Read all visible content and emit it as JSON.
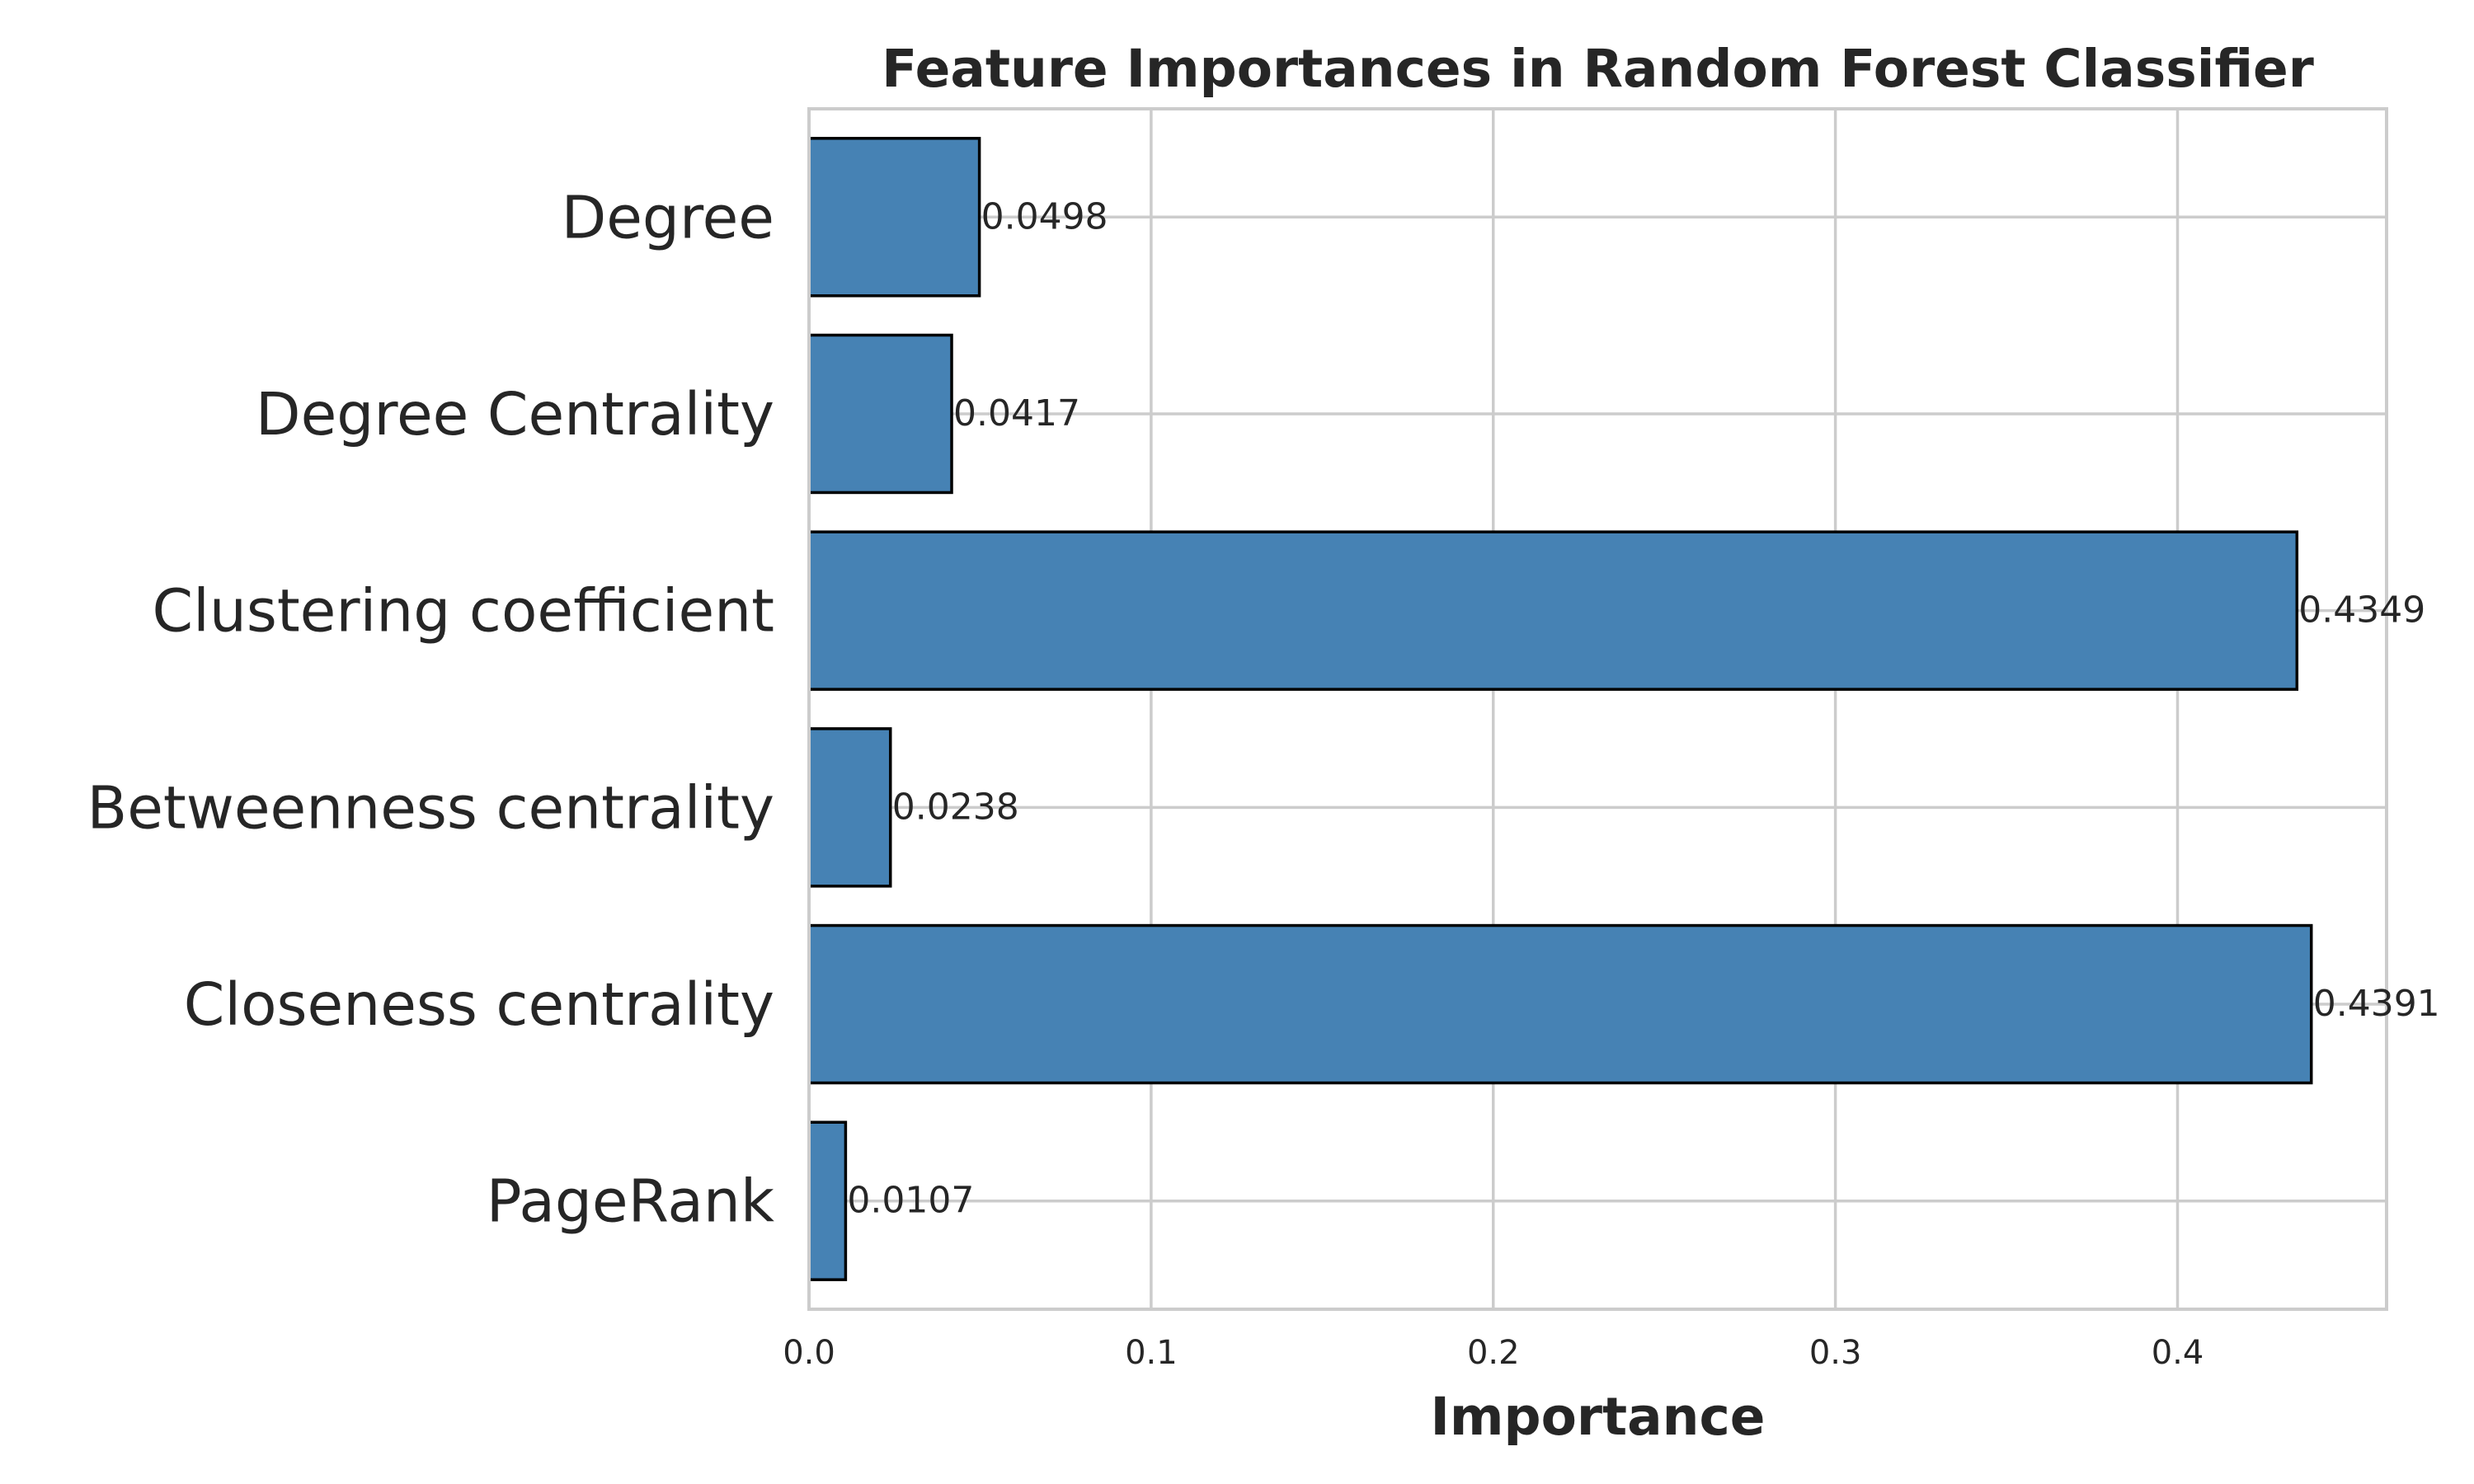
{
  "chart_data": {
    "type": "bar",
    "orientation": "horizontal",
    "title": "Feature Importances in Random Forest Classifier",
    "xlabel": "Importance",
    "ylabel": "",
    "categories": [
      "Degree",
      "Degree Centrality",
      "Clustering coefficient",
      "Betweenness centrality",
      "Closeness centrality",
      "PageRank"
    ],
    "values": [
      0.0498,
      0.0417,
      0.4349,
      0.0238,
      0.4391,
      0.0107
    ],
    "value_labels": [
      "0.0498",
      "0.0417",
      "0.4349",
      "0.0238",
      "0.4391",
      "0.0107"
    ],
    "xlim": [
      0,
      0.4611
    ],
    "xticks": [
      0.0,
      0.1,
      0.2,
      0.3,
      0.4
    ],
    "xtick_labels": [
      "0.0",
      "0.1",
      "0.2",
      "0.3",
      "0.4"
    ],
    "grid": true,
    "legend": "none",
    "colors": {
      "bar": "#4682b4",
      "bar_edge": "#000000",
      "grid": "#cccccc",
      "text": "#262626"
    }
  }
}
